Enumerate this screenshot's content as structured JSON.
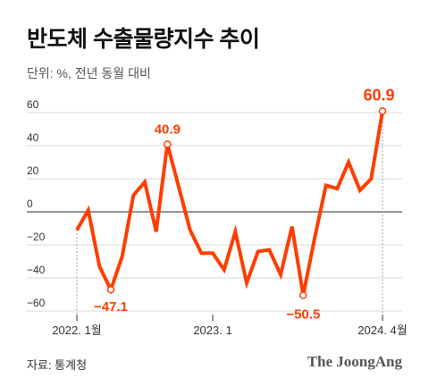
{
  "title": "반도체 수출물량지수 추이",
  "subtitle": "단위: %, 전년 동월 대비",
  "source": "자료: 통계청",
  "logo": "The JoongAng",
  "colors": {
    "line": "#ff3d00",
    "grid": "#d9d9d9",
    "zero": "#555555",
    "tick": "#333333"
  },
  "chart_data": {
    "type": "line",
    "title": "반도체 수출물량지수 추이",
    "xlabel": "",
    "ylabel": "단위: %, 전년 동월 대비",
    "ylim": [
      -60,
      60
    ],
    "yticks": [
      60,
      40,
      20,
      0,
      -20,
      -40,
      -60
    ],
    "ytick_labels": [
      "60",
      "40",
      "20",
      "0",
      "−20",
      "−40",
      "−60"
    ],
    "grid": true,
    "x_tick_labels": [
      {
        "index": 0,
        "label": "2022. 1월"
      },
      {
        "index": 12,
        "label": "2023. 1"
      },
      {
        "index": 27,
        "label": "2024. 4월"
      }
    ],
    "x": [
      "2022-01",
      "2022-02",
      "2022-03",
      "2022-04",
      "2022-05",
      "2022-06",
      "2022-07",
      "2022-08",
      "2022-09",
      "2022-10",
      "2022-11",
      "2022-12",
      "2023-01",
      "2023-02",
      "2023-03",
      "2023-04",
      "2023-05",
      "2023-06",
      "2023-07",
      "2023-08",
      "2023-09",
      "2023-10",
      "2023-11",
      "2023-12",
      "2024-01",
      "2024-02",
      "2024-03",
      "2024-04"
    ],
    "values": [
      -11,
      1,
      -33,
      -47.1,
      -27,
      10,
      18,
      -12,
      40.9,
      15,
      -11,
      -25,
      -25,
      -35,
      -12,
      -43,
      -24,
      -23,
      -38,
      -9,
      -50.5,
      -16,
      16,
      14,
      30,
      13,
      20,
      60.9
    ],
    "annotations": [
      {
        "index": 3,
        "label": "−47.1"
      },
      {
        "index": 8,
        "label": "40.9"
      },
      {
        "index": 20,
        "label": "−50.5"
      },
      {
        "index": 27,
        "label": "60.9"
      }
    ]
  }
}
